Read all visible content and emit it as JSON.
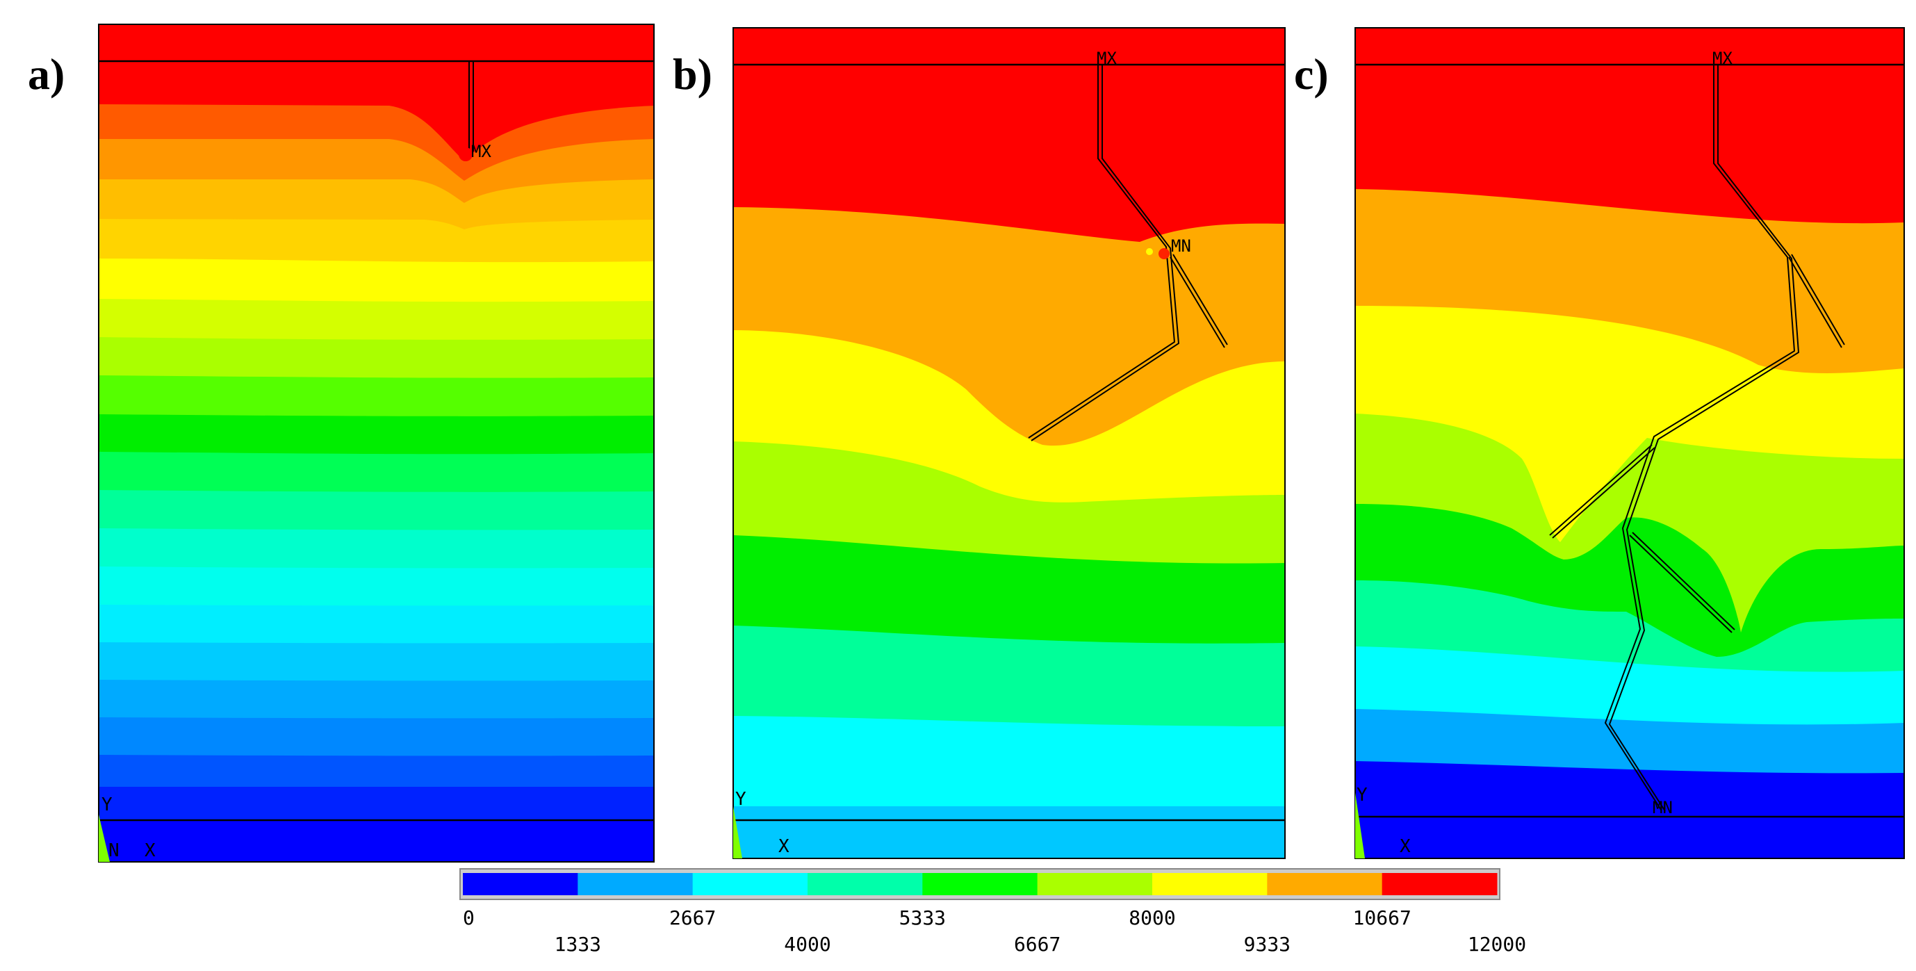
{
  "panels": [
    {
      "letter": "a)",
      "max_marker": "MX",
      "axis_y": "Y",
      "axis_x": "X",
      "axis_origin": "N"
    },
    {
      "letter": "b)",
      "max_marker": "MX",
      "min_marker": "MN",
      "axis_y": "Y",
      "axis_x": "X"
    },
    {
      "letter": "c)",
      "max_marker": "MX",
      "min_marker": "MN",
      "axis_y": "Y",
      "axis_x": "X"
    }
  ],
  "legend": {
    "colors": [
      "#0000ff",
      "#00aaff",
      "#00ffff",
      "#00ffaa",
      "#00ff00",
      "#aaff00",
      "#ffff00",
      "#ffaa00",
      "#ff0000"
    ],
    "ticks": [
      "0",
      "1333",
      "2667",
      "4000",
      "5333",
      "6667",
      "8000",
      "9333",
      "10667",
      "12000"
    ]
  },
  "colors": {
    "bg": "#ffffff",
    "frame": "#000000",
    "legend_frame": "#888888",
    "axis_glyph": "#7fff00"
  }
}
